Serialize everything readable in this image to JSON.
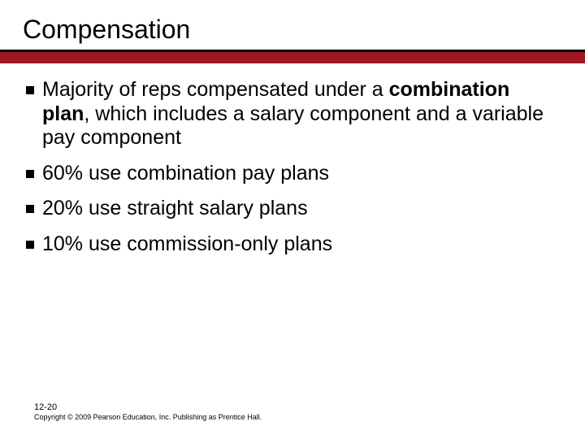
{
  "slide": {
    "title": "Compensation",
    "title_fontsize": 32,
    "title_color": "#000000",
    "header_bg": "#000000",
    "accent_bar_color": "#a01820",
    "accent_bar_height": 14,
    "background_color": "#ffffff",
    "bullet_marker": {
      "shape": "square",
      "size": 10,
      "color": "#000000"
    },
    "body_fontsize": 25,
    "body_color": "#000000",
    "bullets": [
      {
        "runs": [
          {
            "text": "Majority of reps compensated under a ",
            "bold": false
          },
          {
            "text": "combination plan",
            "bold": true
          },
          {
            "text": ", which includes a salary component and a variable pay component",
            "bold": false
          }
        ]
      },
      {
        "runs": [
          {
            "text": "60% use combination pay plans",
            "bold": false
          }
        ]
      },
      {
        "runs": [
          {
            "text": "20% use straight salary plans",
            "bold": false
          }
        ]
      },
      {
        "runs": [
          {
            "text": "10% use commission-only plans",
            "bold": false
          }
        ]
      }
    ],
    "footer": {
      "slide_number": "12-20",
      "copyright": "Copyright © 2009 Pearson Education, Inc. Publishing as Prentice Hall.",
      "slide_number_fontsize": 11,
      "copyright_fontsize": 9
    }
  }
}
